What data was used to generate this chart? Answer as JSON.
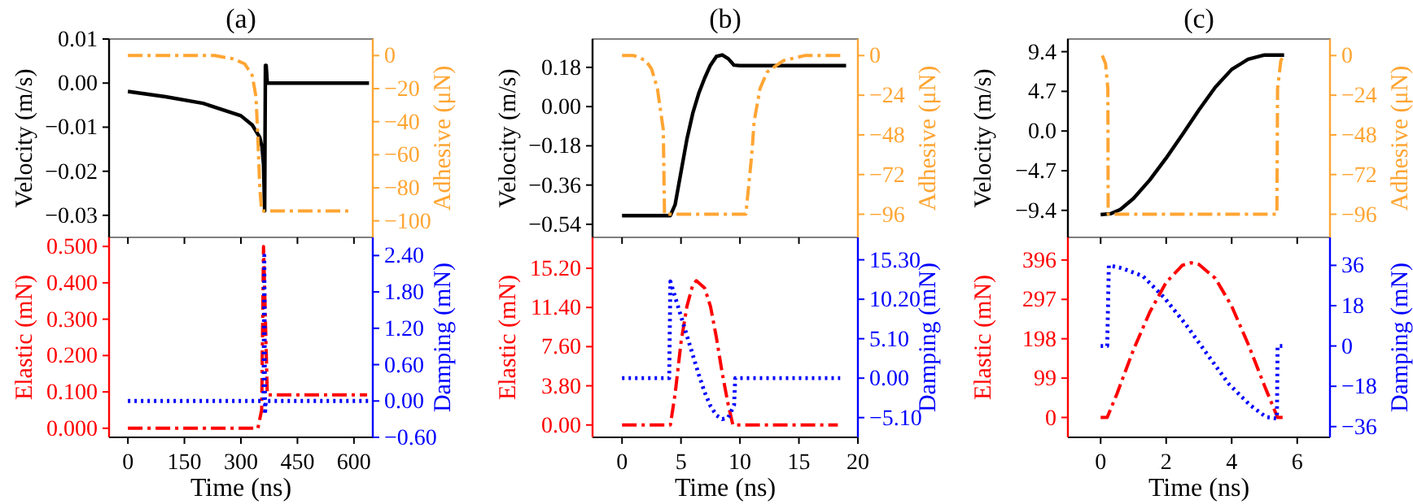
{
  "chart_data": [
    {
      "type": "line",
      "title": "(a)",
      "ylabel": "Velocity (m/s)",
      "y2label": "Adhesive (μN)",
      "xlim": [
        -50,
        650
      ],
      "xticks": [
        0,
        150,
        300,
        450,
        600
      ],
      "ylim": [
        -0.035,
        0.01
      ],
      "yticks": [
        {
          "value": -0.03,
          "label": "−0.03"
        },
        {
          "value": -0.02,
          "label": "−0.02"
        },
        {
          "value": -0.01,
          "label": "−0.01"
        },
        {
          "value": 0,
          "label": "0.00"
        },
        0.01
      ],
      "y2lim": [
        -110,
        10
      ],
      "y2ticks": [
        -100,
        -80,
        -60,
        -40,
        -20,
        0
      ],
      "tick_labels": "y",
      "series": [
        {
          "color": "#000000",
          "line_style": "solid",
          "x": [
            0,
            100,
            200,
            300,
            330,
            350,
            356,
            360,
            363,
            365,
            367,
            370,
            640
          ],
          "values": [
            -0.0019,
            -0.0031,
            -0.0046,
            -0.0074,
            -0.0095,
            -0.0123,
            -0.0145,
            -0.0185,
            -0.029,
            0.004,
            0.004,
            0,
            0
          ]
        },
        {
          "color": "#ffa533",
          "line_style": "dashed",
          "axis": "y2",
          "x": [
            0,
            230,
            280,
            310,
            330,
            340,
            345,
            350,
            355,
            585
          ],
          "values": [
            0,
            0,
            -2,
            -5,
            -12,
            -25,
            -50,
            -80,
            -94,
            -94
          ]
        }
      ]
    },
    {
      "type": "line",
      "title": "(b)",
      "ylabel": "Velocity (m/s)",
      "y2label": "Adhesive (μN)",
      "xlim": [
        -2.5,
        20
      ],
      "xticks": [
        0,
        5,
        10,
        15,
        20
      ],
      "ylim": [
        -0.6,
        0.31
      ],
      "yticks": [
        {
          "value": -0.54,
          "label": "−0.54"
        },
        {
          "value": -0.36,
          "label": "−0.36"
        },
        {
          "value": -0.18,
          "label": "−0.18"
        },
        {
          "value": 0,
          "label": "0.00"
        },
        0.18
      ],
      "y2lim": [
        -110,
        10
      ],
      "y2ticks": [
        -96,
        -72,
        -48,
        -24,
        0
      ],
      "tick_labels": "y",
      "series": [
        {
          "color": "#000000",
          "line_style": "solid",
          "x": [
            0,
            4.1,
            4.5,
            5,
            5.5,
            6,
            6.5,
            7,
            7.5,
            8,
            8.5,
            9,
            9.5,
            10,
            19
          ],
          "values": [
            -0.5,
            -0.5,
            -0.45,
            -0.3,
            -0.15,
            -0.03,
            0.06,
            0.13,
            0.19,
            0.23,
            0.237,
            0.22,
            0.19,
            0.188,
            0.188
          ]
        },
        {
          "color": "#ffa533",
          "line_style": "dashed",
          "axis": "y2",
          "x": [
            0,
            1,
            2,
            2.5,
            3,
            3.5,
            3.6,
            4.1,
            10.5,
            11,
            11.2,
            11.7,
            12.3,
            13.7,
            15.5,
            18.8
          ],
          "values": [
            0,
            0,
            -3,
            -8,
            -20,
            -45,
            -96,
            -96,
            -96,
            -60,
            -40,
            -20,
            -10,
            -3,
            0,
            0
          ]
        }
      ]
    },
    {
      "type": "line",
      "title": "(c)",
      "ylabel": "Velocity (m/s)",
      "y2label": "Adhesive (μN)",
      "xlim": [
        -1,
        7
      ],
      "xticks": [
        0,
        2,
        4,
        6
      ],
      "ylim": [
        -12.6,
        10.9
      ],
      "yticks": [
        {
          "value": -9.4,
          "label": "−9.4"
        },
        {
          "value": -4.7,
          "label": "−4.7"
        },
        {
          "value": 0,
          "label": "0.0"
        },
        4.7,
        9.4
      ],
      "y2lim": [
        -110,
        10
      ],
      "y2ticks": [
        -96,
        -72,
        -48,
        -24,
        0
      ],
      "tick_labels": "y",
      "series": [
        {
          "color": "#000000",
          "line_style": "solid",
          "x": [
            0,
            0.3,
            0.6,
            1,
            1.5,
            2,
            2.5,
            3,
            3.5,
            4,
            4.5,
            5,
            5.6
          ],
          "values": [
            -9.9,
            -9.8,
            -9.3,
            -8,
            -5.8,
            -3.2,
            -0.4,
            2.5,
            5.2,
            7.3,
            8.5,
            9,
            9
          ]
        },
        {
          "color": "#ffa533",
          "line_style": "dashed",
          "axis": "y2",
          "x": [
            0.05,
            0.15,
            0.22,
            0.23,
            5.38,
            5.4,
            5.5,
            5.6
          ],
          "values": [
            0,
            -5,
            -20,
            -96,
            -96,
            -20,
            -3,
            0
          ]
        }
      ]
    },
    {
      "type": "line",
      "xlabel": "Time (ns)",
      "ylabel": "Elastic (mN)",
      "y2label": "Damping (mN)",
      "xlim": [
        -50,
        650
      ],
      "xticks": [
        0,
        150,
        300,
        450,
        600
      ],
      "ylim": [
        -0.025,
        0.525
      ],
      "yticks": [
        {
          "value": 0,
          "label": "0.000"
        },
        {
          "value": 0.1,
          "label": "0.100"
        },
        {
          "value": 0.2,
          "label": "0.200"
        },
        {
          "value": 0.3,
          "label": "0.300"
        },
        {
          "value": 0.4,
          "label": "0.400"
        },
        {
          "value": 0.5,
          "label": "0.500"
        }
      ],
      "y2lim": [
        -0.6,
        2.7
      ],
      "y2ticks": [
        {
          "value": -0.6,
          "label": "−0.60"
        },
        {
          "value": 0,
          "label": "0.00"
        },
        {
          "value": 0.6,
          "label": "0.60"
        },
        {
          "value": 1.2,
          "label": "1.20"
        },
        {
          "value": 1.8,
          "label": "1.80"
        },
        {
          "value": 2.4,
          "label": "2.40"
        }
      ],
      "series": [
        {
          "color": "#ff0000",
          "line_style": "dashed",
          "x": [
            0,
            345,
            355,
            360,
            365,
            370,
            380,
            635
          ],
          "values": [
            0,
            0,
            0.05,
            0.5,
            0.3,
            0.092,
            0.092,
            0.092
          ]
        },
        {
          "color": "#0000ff",
          "line_style": "dotted",
          "axis": "y2",
          "x": [
            0,
            360,
            362,
            364,
            366,
            640
          ],
          "values": [
            0,
            0,
            2.4,
            -0.22,
            0,
            0
          ]
        }
      ]
    },
    {
      "type": "line",
      "xlabel": "Time (ns)",
      "ylabel": "Elastic (mN)",
      "y2label": "Damping (mN)",
      "xlim": [
        -2.5,
        20
      ],
      "xticks": [
        0,
        5,
        10,
        15,
        20
      ],
      "ylim": [
        -1.2,
        18.2
      ],
      "yticks": [
        {
          "value": 0,
          "label": "0.00"
        },
        {
          "value": 3.8,
          "label": "3.80"
        },
        {
          "value": 7.6,
          "label": "7.60"
        },
        {
          "value": 11.4,
          "label": "11.40"
        },
        {
          "value": 15.2,
          "label": "15.20"
        }
      ],
      "y2lim": [
        -7.65,
        18.2
      ],
      "y2ticks": [
        {
          "value": -5.1,
          "label": "−5.10"
        },
        {
          "value": 0,
          "label": "0.00"
        },
        {
          "value": 5.1,
          "label": "5.10"
        },
        {
          "value": 10.2,
          "label": "10.20"
        },
        {
          "value": 15.3,
          "label": "15.30"
        }
      ],
      "series": [
        {
          "color": "#ff0000",
          "line_style": "dashed",
          "x": [
            0,
            4.1,
            4.5,
            5,
            5.5,
            6,
            6.3,
            7,
            7.5,
            8,
            8.5,
            9,
            9.4,
            18.3
          ],
          "values": [
            0,
            0,
            3,
            8,
            11.5,
            13.6,
            14,
            13.3,
            11.5,
            8.5,
            5,
            2,
            0,
            0
          ]
        },
        {
          "color": "#0000ff",
          "line_style": "dotted",
          "axis": "y2",
          "x": [
            0,
            4,
            4.1,
            4.5,
            5,
            5.5,
            6,
            6.5,
            7,
            7.5,
            8,
            8.5,
            9,
            9.5,
            9.6,
            18.5
          ],
          "values": [
            0,
            0,
            12.5,
            10.5,
            8,
            5.5,
            3,
            0.5,
            -1.8,
            -3.6,
            -4.8,
            -5.3,
            -5.1,
            -3.5,
            0,
            0
          ]
        }
      ]
    },
    {
      "type": "line",
      "xlabel": "Time (ns)",
      "ylabel": "Elastic (mN)",
      "y2label": "Damping (mN)",
      "xlim": [
        -1,
        7
      ],
      "xticks": [
        0,
        2,
        4,
        6
      ],
      "ylim": [
        -50,
        453
      ],
      "yticks": [
        0,
        99,
        198,
        297,
        396
      ],
      "y2lim": [
        -40.8,
        48.5
      ],
      "y2ticks": [
        -36,
        -18,
        0,
        18,
        36
      ],
      "series": [
        {
          "color": "#ff0000",
          "line_style": "dashed",
          "x": [
            0,
            0.2,
            0.5,
            1,
            1.5,
            2,
            2.5,
            2.76,
            3,
            3.5,
            4,
            4.5,
            5,
            5.4,
            5.6
          ],
          "values": [
            0,
            0,
            60,
            170,
            265,
            340,
            383,
            389,
            385,
            350,
            280,
            185,
            80,
            0,
            0
          ]
        },
        {
          "color": "#0000ff",
          "line_style": "dotted",
          "axis": "y2",
          "x": [
            0,
            0.2,
            0.25,
            0.64,
            1.29,
            1.94,
            2.6,
            3.25,
            3.9,
            4.56,
            5.05,
            5.38,
            5.4,
            5.62
          ],
          "values": [
            0,
            0,
            36,
            34.8,
            31.2,
            21.6,
            9.6,
            -3.6,
            -16.8,
            -26.4,
            -31.7,
            -32.4,
            0,
            0
          ]
        }
      ]
    }
  ]
}
